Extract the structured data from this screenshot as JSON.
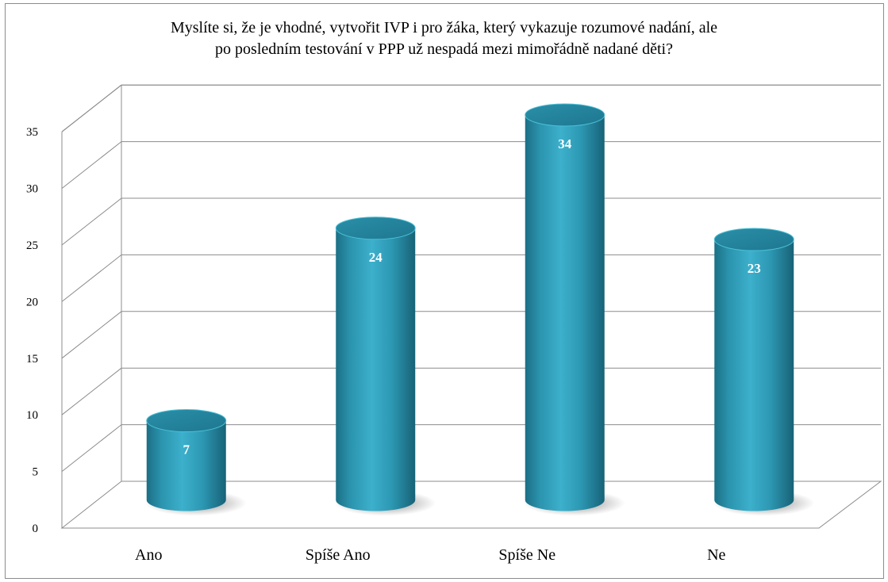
{
  "chart_data": {
    "type": "bar",
    "title_lines": [
      "Myslíte si, že je vhodné, vytvořit IVP i pro žáka, který vykazuje rozumové nadání, ale",
      "po posledním testování v PPP už nespadá mezi mimořádně nadané děti?"
    ],
    "categories": [
      "Ano",
      "Spíše Ano",
      "Spíše Ne",
      "Ne"
    ],
    "values": [
      7,
      24,
      34,
      23
    ],
    "ylim": [
      0,
      35
    ],
    "yticks": [
      0,
      5,
      10,
      15,
      20,
      25,
      30,
      35
    ],
    "grid": true,
    "legend": "none",
    "bar_shape": "cylinder-3d",
    "bar_color": "#31a2bd"
  }
}
